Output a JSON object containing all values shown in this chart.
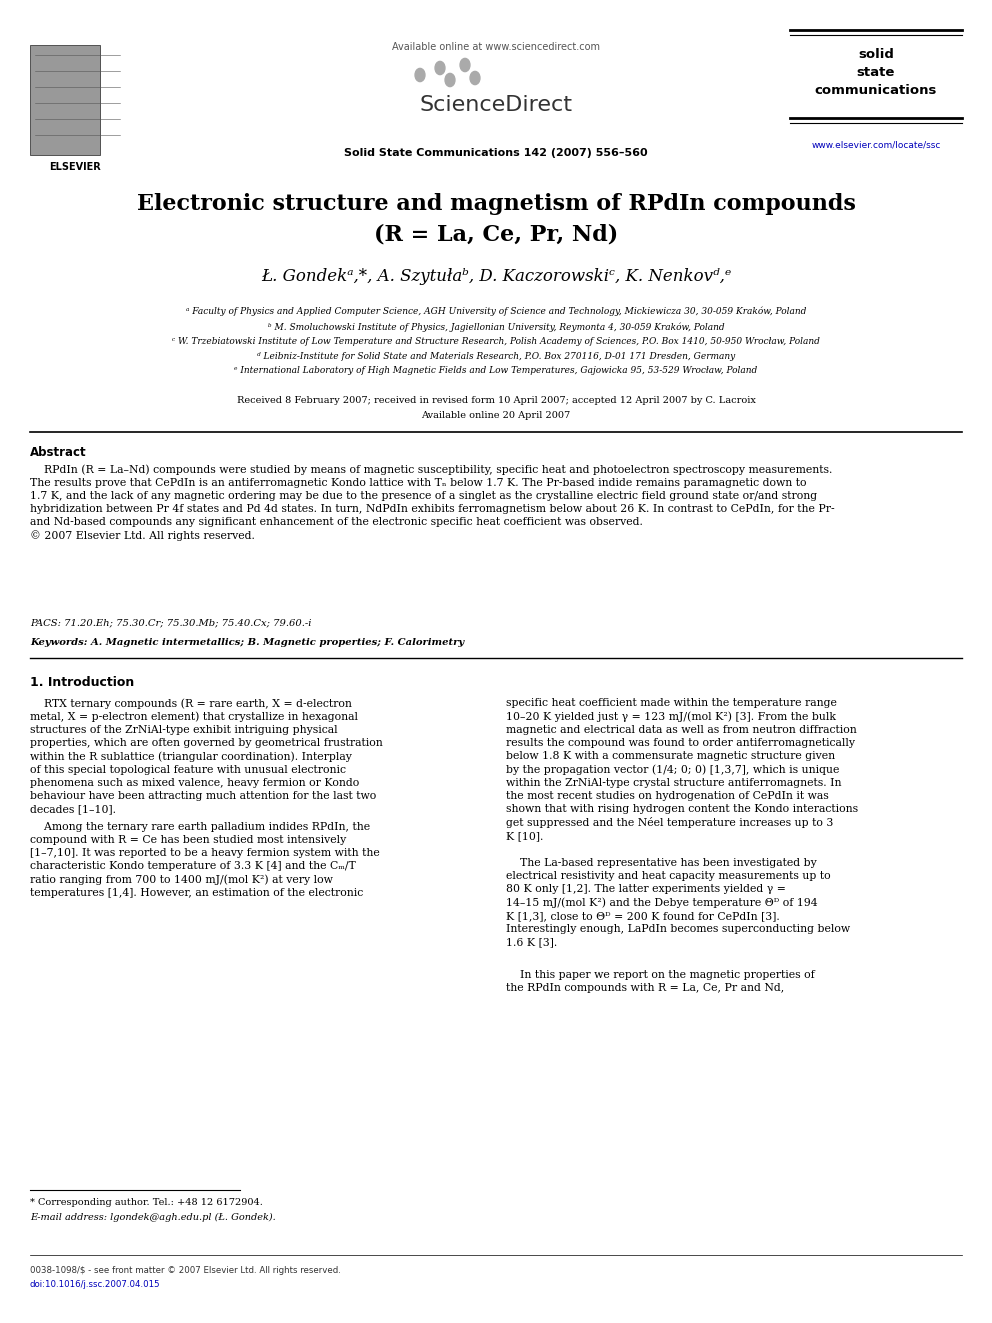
{
  "page_bg": "#ffffff",
  "header_available": "Available online at www.sciencedirect.com",
  "header_journal_line": "Solid State Communications 142 (2007) 556–560",
  "journal_name_lines": [
    "solid",
    "state",
    "communications"
  ],
  "journal_url": "www.elsevier.com/locate/ssc",
  "title_line1": "Electronic structure and magnetism of RPdIn compounds",
  "title_line2": "(R = La, Ce, Pr, Nd)",
  "authors_text": "Ł. Gondekᵃ,*, A. Szytułaᵇ, D. Kaczorowskiᶜ, K. Nenkovᵈ,ᵉ",
  "affiliations": [
    "ᵃ Faculty of Physics and Applied Computer Science, AGH University of Science and Technology, Mickiewicza 30, 30-059 Kraków, Poland",
    "ᵇ M. Smoluchowski Institute of Physics, Jagiellonian University, Reymonta 4, 30-059 Kraków, Poland",
    "ᶜ W. Trzebiatowski Institute of Low Temperature and Structure Research, Polish Academy of Sciences, P.O. Box 1410, 50-950 Wrocław, Poland",
    "ᵈ Leibniz-Institute for Solid State and Materials Research, P.O. Box 270116, D-01 171 Dresden, Germany",
    "ᵉ International Laboratory of High Magnetic Fields and Low Temperatures, Gajowicka 95, 53-529 Wrocław, Poland"
  ],
  "received_line": "Received 8 February 2007; received in revised form 10 April 2007; accepted 12 April 2007 by C. Lacroix",
  "available_online2": "Available online 20 April 2007",
  "abstract_title": "Abstract",
  "abstract_body": "    RPdIn (R = La–Nd) compounds were studied by means of magnetic susceptibility, specific heat and photoelectron spectroscopy measurements.\nThe results prove that CePdIn is an antiferromagnetic Kondo lattice with Tₙ below 1.7 K. The Pr-based indide remains paramagnetic down to\n1.7 K, and the lack of any magnetic ordering may be due to the presence of a singlet as the crystalline electric field ground state or/and strong\nhybridization between Pr 4f states and Pd 4d states. In turn, NdPdIn exhibits ferromagnetism below about 26 K. In contrast to CePdIn, for the Pr-\nand Nd-based compounds any significant enhancement of the electronic specific heat coefficient was observed.\n© 2007 Elsevier Ltd. All rights reserved.",
  "pacs_line": "PACS: 71.20.Eh; 75.30.Cr; 75.30.Mb; 75.40.Cx; 79.60.-i",
  "keywords_line": "Keywords: A. Magnetic intermetallics; B. Magnetic properties; F. Calorimetry",
  "section1_title": "1. Introduction",
  "col1_p1": "    RTX ternary compounds (R = rare earth, X = d-electron\nmetal, X = p-electron element) that crystallize in hexagonal\nstructures of the ZrNiAl-type exhibit intriguing physical\nproperties, which are often governed by geometrical frustration\nwithin the R sublattice (triangular coordination). Interplay\nof this special topological feature with unusual electronic\nphenomena such as mixed valence, heavy fermion or Kondo\nbehaviour have been attracting much attention for the last two\ndecades [1–10].",
  "col1_p2": "    Among the ternary rare earth palladium indides RPdIn, the\ncompound with R = Ce has been studied most intensively\n[1–7,10]. It was reported to be a heavy fermion system with the\ncharacteristic Kondo temperature of 3.3 K [4] and the Cₘ/T\nratio ranging from 700 to 1400 mJ/(mol K²) at very low\ntemperatures [1,4]. However, an estimation of the electronic",
  "col2_p1": "specific heat coefficient made within the temperature range\n10–20 K yielded just γ = 123 mJ/(mol K²) [3]. From the bulk\nmagnetic and electrical data as well as from neutron diffraction\nresults the compound was found to order antiferromagnetically\nbelow 1.8 K with a commensurate magnetic structure given\nby the propagation vector (1/4; 0; 0) [1,3,7], which is unique\nwithin the ZrNiAl-type crystal structure antiferromagnets. In\nthe most recent studies on hydrogenation of CePdIn it was\nshown that with rising hydrogen content the Kondo interactions\nget suppressed and the Néel temperature increases up to 3\nK [10].",
  "col2_p2": "    The La-based representative has been investigated by\nelectrical resistivity and heat capacity measurements up to\n80 K only [1,2]. The latter experiments yielded γ =\n14–15 mJ/(mol K²) and the Debye temperature Θᴰ of 194\nK [1,3], close to Θᴰ = 200 K found for CePdIn [3].\nInterestingly enough, LaPdIn becomes superconducting below\n1.6 K [3].",
  "col2_p3": "    In this paper we report on the magnetic properties of\nthe RPdIn compounds with R = La, Ce, Pr and Nd,",
  "footnote1": "* Corresponding author. Tel.: +48 12 6172904.",
  "footnote2": "E-mail address: lgondek@agh.edu.pl (Ł. Gondek).",
  "bottom_line1": "0038-1098/$ - see front matter © 2007 Elsevier Ltd. All rights reserved.",
  "bottom_line2": "doi:10.1016/j.ssc.2007.04.015"
}
